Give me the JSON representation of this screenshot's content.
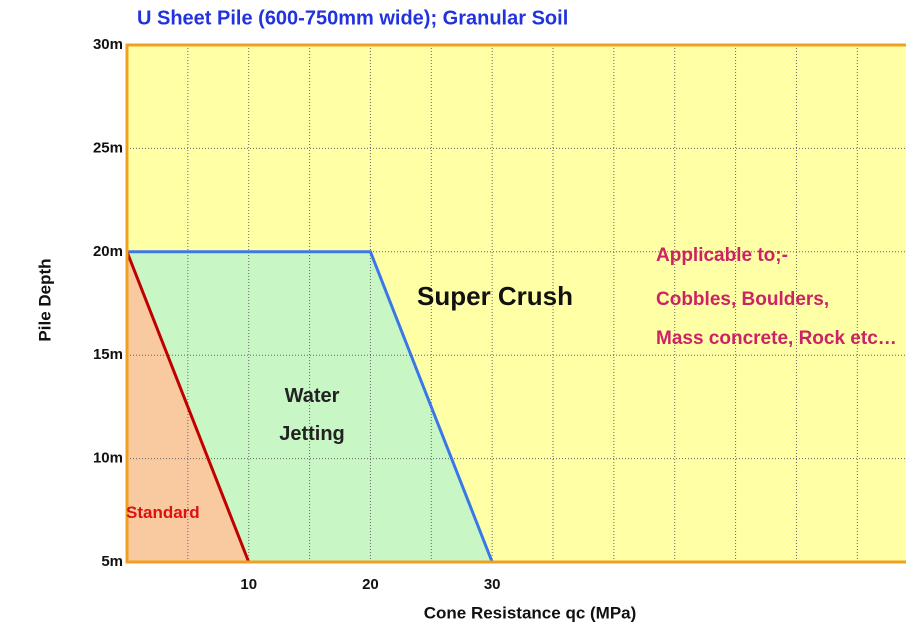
{
  "chart_data": {
    "type": "region",
    "title": "U Sheet Pile (600-750mm wide); Granular Soil",
    "x_label": "Cone Resistance  qc (MPa)",
    "y_label": "Pile Depth",
    "xlim": [
      0,
      64
    ],
    "ylim": [
      5,
      30
    ],
    "xticks": [
      10,
      20,
      30
    ],
    "xgrid": [
      5,
      10,
      15,
      20,
      25,
      30,
      35,
      40,
      45,
      50,
      55,
      60
    ],
    "yticks": [
      {
        "value": 5,
        "label": "5m"
      },
      {
        "value": 10,
        "label": "10m"
      },
      {
        "value": 15,
        "label": "15m"
      },
      {
        "value": 20,
        "label": "20m"
      },
      {
        "value": 25,
        "label": "25m"
      },
      {
        "value": 30,
        "label": "30m"
      }
    ],
    "grid": true,
    "regions": [
      {
        "name": "Super Crush",
        "color": "#ffffa6",
        "x": [
          0,
          0,
          64,
          64,
          30,
          20
        ],
        "y": [
          20,
          30,
          30,
          5,
          5,
          20
        ]
      },
      {
        "name": "Water Jetting",
        "color": "#c8f7c5",
        "edge": "#3b78e7",
        "x": [
          0,
          20,
          30,
          10
        ],
        "y": [
          20,
          20,
          5,
          5
        ]
      },
      {
        "name": "Standard",
        "color": "#f9c9a0",
        "edge": "#c00000",
        "x": [
          0,
          0,
          10
        ],
        "y": [
          5,
          20,
          5
        ]
      }
    ],
    "annotations": [
      "Applicable to;-",
      "Cobbles, Boulders,",
      "Mass concrete, Rock etc…"
    ]
  }
}
